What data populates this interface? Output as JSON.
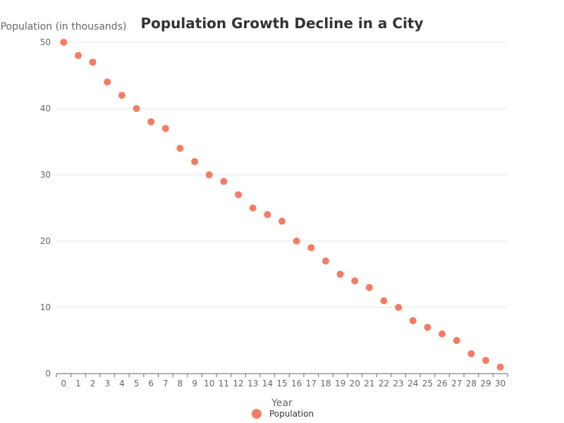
{
  "chart_data": {
    "type": "scatter",
    "title": "Population Growth Decline in a City",
    "xlabel": "Year",
    "ylabel": "Population (in thousands)",
    "x": [
      0,
      1,
      2,
      3,
      4,
      5,
      6,
      7,
      8,
      9,
      10,
      11,
      12,
      13,
      14,
      15,
      16,
      17,
      18,
      19,
      20,
      21,
      22,
      23,
      24,
      25,
      26,
      27,
      28,
      29,
      30
    ],
    "series": [
      {
        "name": "Population",
        "values": [
          50,
          48,
          47,
          44,
          42,
          40,
          38,
          37,
          34,
          32,
          30,
          29,
          27,
          25,
          24,
          23,
          20,
          19,
          17,
          15,
          14,
          13,
          11,
          10,
          8,
          7,
          6,
          5,
          3,
          2,
          1
        ]
      }
    ],
    "xlim": [
      0,
      30
    ],
    "ylim": [
      0,
      50
    ],
    "yticks": [
      0,
      10,
      20,
      30,
      40,
      50
    ],
    "grid": "horizontal",
    "legend": "bottom-center",
    "colors": {
      "point": "#f47c63",
      "grid": "#e6e6e6",
      "axis": "#666666"
    }
  }
}
